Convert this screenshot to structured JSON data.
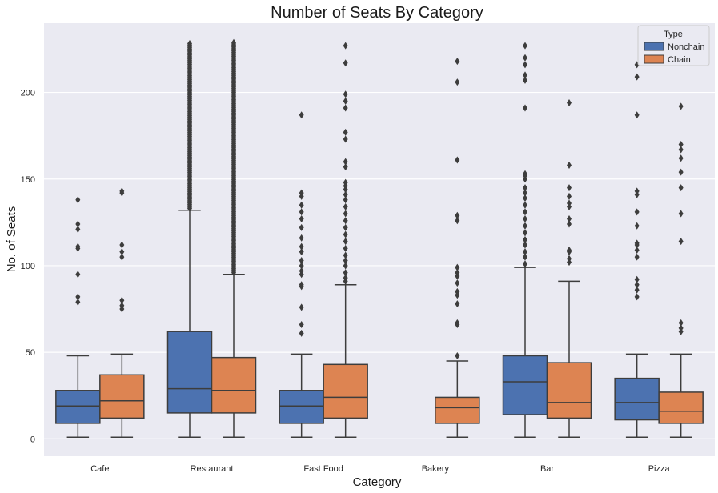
{
  "chart_data": {
    "type": "box",
    "title": "Number of Seats By Category",
    "xlabel": "Category",
    "ylabel": "No. of Seats",
    "ylim": [
      -10,
      240
    ],
    "yticks": [
      0,
      50,
      100,
      150,
      200
    ],
    "ytick_labels": [
      "0",
      "50",
      "100",
      "150",
      "200"
    ],
    "grid": true,
    "legend": {
      "title": "Type",
      "placement": "top-right"
    },
    "categories": [
      "Cafe",
      "Restaurant",
      "Fast Food",
      "Bakery",
      "Bar",
      "Pizza"
    ],
    "series": [
      {
        "name": "Nonchain",
        "color": "#4c72b0",
        "boxes": [
          {
            "category": "Cafe",
            "q1": 9,
            "median": 19,
            "q3": 28,
            "whisker_low": 1,
            "whisker_high": 48,
            "outliers": [
              79,
              82,
              95,
              110,
              111,
              121,
              124,
              138
            ]
          },
          {
            "category": "Restaurant",
            "q1": 15,
            "median": 29,
            "q3": 62,
            "whisker_low": 1,
            "whisker_high": 132,
            "outlier_band": [
              133,
              229
            ]
          },
          {
            "category": "Fast Food",
            "q1": 9,
            "median": 19,
            "q3": 28,
            "whisker_low": 1,
            "whisker_high": 49,
            "outliers": [
              61,
              66,
              76,
              88,
              89,
              95,
              97,
              100,
              103,
              108,
              111,
              116,
              122,
              127,
              131,
              135,
              140,
              142,
              187
            ]
          },
          {
            "category": "Bakery"
          },
          {
            "category": "Bar",
            "q1": 14,
            "median": 33,
            "q3": 48,
            "whisker_low": 1,
            "whisker_high": 99,
            "outliers": [
              101,
              105,
              108,
              112,
              115,
              119,
              123,
              127,
              131,
              135,
              139,
              142,
              145,
              150,
              152,
              153,
              191,
              207,
              210,
              216,
              220,
              227
            ]
          },
          {
            "category": "Pizza",
            "q1": 11,
            "median": 21,
            "q3": 35,
            "whisker_low": 1,
            "whisker_high": 49,
            "outliers": [
              82,
              86,
              89,
              92,
              105,
              109,
              112,
              113,
              123,
              131,
              141,
              143,
              187,
              209,
              216
            ]
          }
        ]
      },
      {
        "name": "Chain",
        "color": "#dd8452",
        "boxes": [
          {
            "category": "Cafe",
            "q1": 12,
            "median": 22,
            "q3": 37,
            "whisker_low": 1,
            "whisker_high": 49,
            "outliers": [
              75,
              77,
              80,
              105,
              108,
              112,
              142,
              143
            ]
          },
          {
            "category": "Restaurant",
            "q1": 15,
            "median": 28,
            "q3": 47,
            "whisker_low": 1,
            "whisker_high": 95,
            "outlier_band": [
              96,
              229
            ]
          },
          {
            "category": "Fast Food",
            "q1": 12,
            "median": 24,
            "q3": 43,
            "whisker_low": 1,
            "whisker_high": 89,
            "outliers": [
              91,
              93,
              96,
              100,
              103,
              106,
              110,
              114,
              118,
              122,
              126,
              130,
              134,
              138,
              141,
              144,
              146,
              148,
              157,
              160,
              173,
              177,
              191,
              195,
              199,
              217,
              227
            ]
          },
          {
            "category": "Bakery",
            "q1": 9,
            "median": 18,
            "q3": 24,
            "whisker_low": 1,
            "whisker_high": 45,
            "outliers": [
              48,
              66,
              67,
              78,
              83,
              85,
              90,
              94,
              96,
              99,
              126,
              129,
              161,
              206,
              218
            ]
          },
          {
            "category": "Bar",
            "q1": 12,
            "median": 21,
            "q3": 44,
            "whisker_low": 1,
            "whisker_high": 91,
            "outliers": [
              102,
              104,
              108,
              109,
              124,
              127,
              134,
              136,
              140,
              145,
              158,
              194
            ]
          },
          {
            "category": "Pizza",
            "q1": 9,
            "median": 16,
            "q3": 27,
            "whisker_low": 1,
            "whisker_high": 49,
            "outliers": [
              62,
              64,
              67,
              114,
              130,
              145,
              154,
              162,
              167,
              170,
              192
            ]
          }
        ]
      }
    ]
  }
}
